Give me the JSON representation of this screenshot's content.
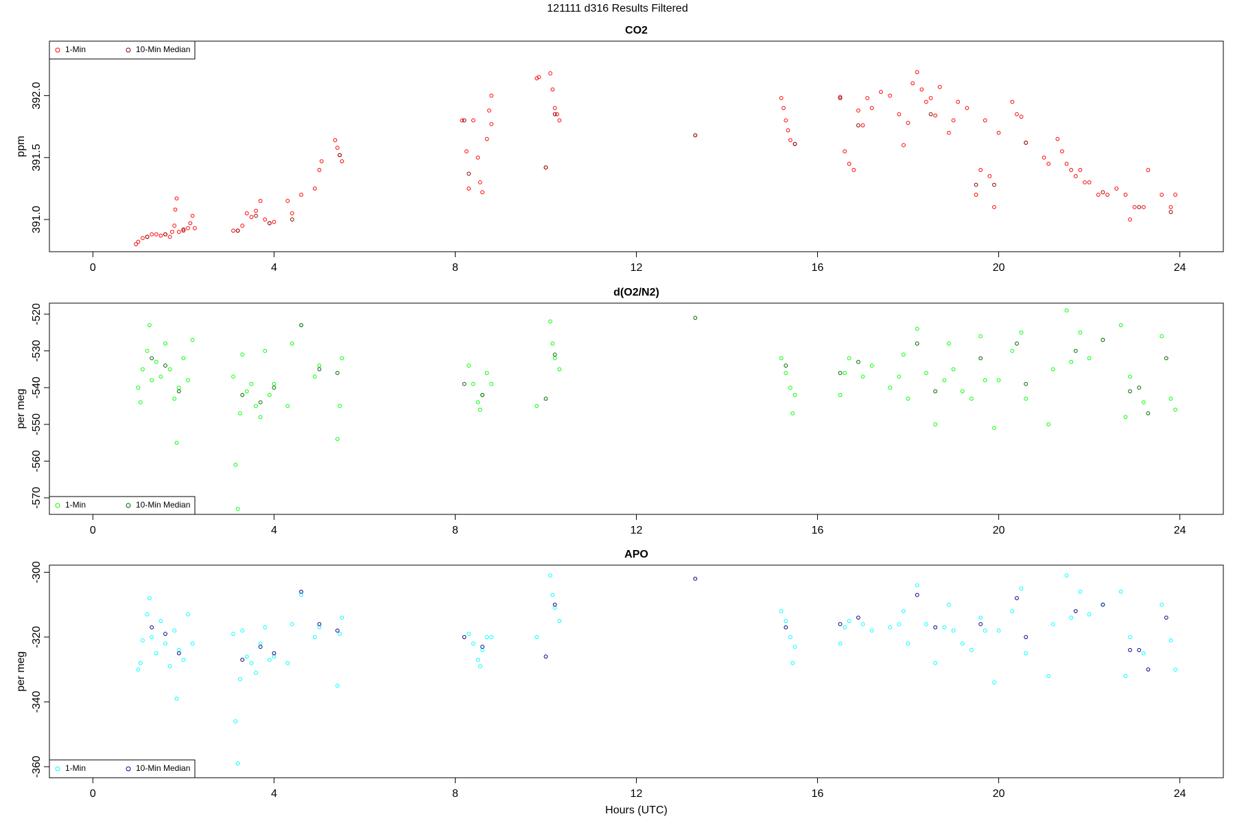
{
  "title": "121111   d316   Results Filtered",
  "chart_data": [
    {
      "type": "scatter",
      "title": "CO2",
      "ylabel": "ppm",
      "legend": "topleft",
      "xlim": [
        -0.96,
        24.96
      ],
      "xticks": [
        0,
        4,
        8,
        12,
        16,
        20,
        24
      ],
      "ylim": [
        390.74,
        392.44
      ],
      "yticks": [
        {
          "value": 391,
          "label": "391.0"
        },
        391.5,
        {
          "value": 392,
          "label": "392.0"
        }
      ],
      "series": [
        {
          "name": "1-Min",
          "color": "#ff0000",
          "x": [
            0.95,
            1.0,
            1.1,
            1.2,
            1.3,
            1.4,
            1.5,
            1.6,
            1.7,
            1.75,
            1.8,
            1.82,
            1.85,
            1.9,
            2.0,
            2.1,
            2.15,
            2.2,
            2.25,
            3.1,
            3.2,
            3.3,
            3.4,
            3.5,
            3.6,
            3.7,
            3.8,
            3.9,
            4.0,
            4.3,
            4.4,
            4.6,
            4.9,
            5.0,
            5.05,
            5.35,
            5.4,
            5.45,
            5.5,
            8.15,
            8.25,
            8.3,
            8.4,
            8.5,
            8.55,
            8.6,
            8.7,
            8.75,
            8.8,
            8.8,
            9.8,
            9.85,
            10.0,
            10.1,
            10.15,
            10.2,
            10.25,
            10.3,
            13.3,
            15.2,
            15.25,
            15.3,
            15.35,
            15.4,
            15.5,
            16.5,
            16.6,
            16.7,
            16.8,
            16.9,
            17.0,
            17.1,
            17.2,
            17.4,
            17.6,
            17.8,
            17.9,
            18.0,
            18.1,
            18.2,
            18.3,
            18.4,
            18.5,
            18.6,
            18.7,
            18.9,
            19.0,
            19.1,
            19.3,
            19.5,
            19.6,
            19.7,
            19.8,
            19.9,
            20.0,
            20.3,
            20.4,
            20.5,
            20.6,
            21.0,
            21.1,
            21.3,
            21.4,
            21.5,
            21.6,
            21.7,
            21.8,
            21.9,
            22.0,
            22.2,
            22.4,
            22.6,
            22.8,
            22.9,
            23.0,
            23.2,
            23.3,
            23.6,
            23.8,
            23.9
          ],
          "values": [
            390.8,
            390.82,
            390.85,
            390.86,
            390.88,
            390.88,
            390.87,
            390.88,
            390.86,
            390.9,
            390.95,
            391.08,
            391.17,
            390.9,
            390.91,
            390.93,
            390.97,
            391.03,
            390.93,
            390.91,
            390.91,
            390.95,
            391.05,
            391.02,
            391.07,
            391.15,
            391.0,
            390.97,
            390.98,
            391.15,
            391.05,
            391.2,
            391.25,
            391.4,
            391.47,
            391.64,
            391.58,
            391.52,
            391.47,
            391.8,
            391.55,
            391.25,
            391.8,
            391.5,
            391.3,
            391.22,
            391.65,
            391.88,
            392.0,
            391.77,
            392.14,
            392.15,
            391.42,
            392.18,
            392.05,
            391.9,
            391.85,
            391.8,
            391.68,
            391.98,
            391.9,
            391.8,
            391.72,
            391.64,
            391.61,
            391.99,
            391.55,
            391.45,
            391.4,
            391.88,
            391.76,
            391.98,
            391.9,
            392.03,
            392.0,
            391.85,
            391.6,
            391.78,
            392.1,
            392.19,
            392.05,
            391.95,
            391.98,
            391.84,
            392.07,
            391.7,
            391.8,
            391.95,
            391.9,
            391.2,
            391.4,
            391.8,
            391.35,
            391.1,
            391.7,
            391.95,
            391.85,
            391.83,
            391.62,
            391.5,
            391.45,
            391.65,
            391.55,
            391.45,
            391.4,
            391.35,
            391.4,
            391.3,
            391.3,
            391.2,
            391.2,
            391.25,
            391.2,
            391.0,
            391.1,
            391.1,
            391.4,
            391.2,
            391.1,
            391.2
          ]
        },
        {
          "name": "10-Min Median",
          "color": "#8b0000",
          "x": [
            1.2,
            1.6,
            2.0,
            3.2,
            3.6,
            3.9,
            4.4,
            5.45,
            8.2,
            8.3,
            10.0,
            10.2,
            13.3,
            15.5,
            16.5,
            16.9,
            18.5,
            19.5,
            19.9,
            20.6,
            22.3,
            23.1,
            23.8
          ],
          "values": [
            390.86,
            390.88,
            390.92,
            390.91,
            391.03,
            390.97,
            391.0,
            391.52,
            391.8,
            391.37,
            391.42,
            391.85,
            391.68,
            391.61,
            391.98,
            391.76,
            391.85,
            391.28,
            391.28,
            391.62,
            391.22,
            391.1,
            391.06
          ]
        }
      ]
    },
    {
      "type": "scatter",
      "title": "d(O2/N2)",
      "ylabel": "per meg",
      "legend": "bottomleft",
      "xlim": [
        -0.96,
        24.96
      ],
      "xticks": [
        0,
        4,
        8,
        12,
        16,
        20,
        24
      ],
      "ylim": [
        -574.5,
        -517.0
      ],
      "yticks": [
        -570,
        -560,
        -550,
        -540,
        -530,
        -520
      ],
      "series": [
        {
          "name": "1-Min",
          "color": "#00ff00",
          "x": [
            1.0,
            1.05,
            1.1,
            1.2,
            1.25,
            1.3,
            1.4,
            1.5,
            1.6,
            1.7,
            1.8,
            1.85,
            1.9,
            2.0,
            2.1,
            2.2,
            3.1,
            3.15,
            3.2,
            3.25,
            3.3,
            3.4,
            3.5,
            3.6,
            3.7,
            3.8,
            3.9,
            4.0,
            4.3,
            4.4,
            4.6,
            4.9,
            5.0,
            5.4,
            5.45,
            5.5,
            8.3,
            8.4,
            8.5,
            8.55,
            8.6,
            8.7,
            8.8,
            9.8,
            10.1,
            10.15,
            10.2,
            10.3,
            15.2,
            15.3,
            15.4,
            15.45,
            15.5,
            16.5,
            16.6,
            16.7,
            17.0,
            17.2,
            17.6,
            17.8,
            17.9,
            18.0,
            18.2,
            18.4,
            18.6,
            18.8,
            18.9,
            19.0,
            19.2,
            19.4,
            19.6,
            19.7,
            19.9,
            20.0,
            20.3,
            20.5,
            20.6,
            21.1,
            21.2,
            21.5,
            21.6,
            21.8,
            22.0,
            22.3,
            22.7,
            22.8,
            22.9,
            23.2,
            23.6,
            23.8,
            23.9
          ],
          "values": [
            -540,
            -544,
            -535,
            -530,
            -523,
            -538,
            -533,
            -537,
            -528,
            -535,
            -543,
            -555,
            -540,
            -532,
            -538,
            -527,
            -537,
            -561,
            -573,
            -547,
            -531,
            -541,
            -539,
            -545,
            -548,
            -530,
            -542,
            -539,
            -545,
            -528,
            -523,
            -537,
            -534,
            -554,
            -545,
            -532,
            -534,
            -539,
            -544,
            -546,
            -542,
            -536,
            -539,
            -545,
            -522,
            -528,
            -532,
            -535,
            -532,
            -536,
            -540,
            -547,
            -542,
            -542,
            -536,
            -532,
            -537,
            -534,
            -540,
            -537,
            -531,
            -543,
            -524,
            -536,
            -550,
            -538,
            -528,
            -535,
            -541,
            -543,
            -526,
            -538,
            -551,
            -538,
            -530,
            -525,
            -543,
            -550,
            -535,
            -519,
            -533,
            -525,
            -532,
            -527,
            -523,
            -548,
            -537,
            -544,
            -526,
            -543,
            -546
          ]
        },
        {
          "name": "10-Min Median",
          "color": "#006400",
          "x": [
            1.3,
            1.6,
            1.9,
            3.3,
            3.7,
            4.0,
            4.6,
            5.0,
            5.4,
            8.2,
            8.6,
            10.0,
            10.2,
            13.3,
            15.3,
            16.5,
            16.9,
            18.2,
            18.6,
            19.6,
            20.4,
            20.6,
            21.7,
            22.3,
            22.9,
            23.1,
            23.3,
            23.7
          ],
          "values": [
            -532,
            -534,
            -541,
            -542,
            -544,
            -540,
            -523,
            -535,
            -536,
            -539,
            -542,
            -543,
            -531,
            -521,
            -534,
            -536,
            -533,
            -528,
            -541,
            -532,
            -528,
            -539,
            -530,
            -527,
            -541,
            -540,
            -547,
            -532
          ]
        }
      ]
    },
    {
      "type": "scatter",
      "title": "APO",
      "ylabel": "per meg",
      "xlabel": "Hours (UTC)",
      "legend": "bottomleft",
      "xlim": [
        -0.96,
        24.96
      ],
      "xticks": [
        0,
        4,
        8,
        12,
        16,
        20,
        24
      ],
      "ylim": [
        -363.4,
        -297.8
      ],
      "yticks": [
        -360,
        -340,
        -320,
        -300
      ],
      "series": [
        {
          "name": "1-Min",
          "color": "#00ffff",
          "x": [
            1.0,
            1.05,
            1.1,
            1.2,
            1.25,
            1.3,
            1.4,
            1.5,
            1.6,
            1.7,
            1.8,
            1.85,
            1.9,
            2.0,
            2.1,
            2.2,
            3.1,
            3.15,
            3.2,
            3.25,
            3.3,
            3.4,
            3.5,
            3.6,
            3.7,
            3.8,
            3.9,
            4.0,
            4.3,
            4.4,
            4.6,
            4.9,
            5.0,
            5.4,
            5.45,
            5.5,
            8.3,
            8.4,
            8.5,
            8.55,
            8.6,
            8.7,
            8.8,
            9.8,
            10.1,
            10.15,
            10.2,
            10.3,
            15.2,
            15.3,
            15.4,
            15.45,
            15.5,
            16.5,
            16.6,
            16.7,
            17.0,
            17.2,
            17.6,
            17.8,
            17.9,
            18.0,
            18.2,
            18.4,
            18.6,
            18.8,
            18.9,
            19.0,
            19.2,
            19.4,
            19.6,
            19.7,
            19.9,
            20.0,
            20.3,
            20.5,
            20.6,
            21.1,
            21.2,
            21.5,
            21.6,
            21.8,
            22.0,
            22.3,
            22.7,
            22.8,
            22.9,
            23.2,
            23.6,
            23.8,
            23.9
          ],
          "values": [
            -330,
            -328,
            -321,
            -313,
            -308,
            -320,
            -325,
            -315,
            -322,
            -329,
            -318,
            -339,
            -324,
            -327,
            -313,
            -322,
            -319,
            -346,
            -359,
            -333,
            -318,
            -326,
            -328,
            -331,
            -322,
            -317,
            -327,
            -326,
            -328,
            -316,
            -307,
            -320,
            -317,
            -335,
            -319,
            -314,
            -319,
            -322,
            -327,
            -329,
            -324,
            -320,
            -320,
            -320,
            -301,
            -307,
            -311,
            -315,
            -312,
            -315,
            -320,
            -328,
            -323,
            -322,
            -317,
            -315,
            -316,
            -318,
            -317,
            -316,
            -312,
            -322,
            -304,
            -316,
            -328,
            -317,
            -310,
            -318,
            -322,
            -324,
            -314,
            -318,
            -334,
            -318,
            -312,
            -305,
            -325,
            -332,
            -316,
            -301,
            -314,
            -306,
            -313,
            -310,
            -306,
            -332,
            -320,
            -325,
            -310,
            -321,
            -330
          ]
        },
        {
          "name": "10-Min Median",
          "color": "#000080",
          "x": [
            1.3,
            1.6,
            1.9,
            3.3,
            3.7,
            4.0,
            4.6,
            5.0,
            5.4,
            8.2,
            8.6,
            10.0,
            10.2,
            13.3,
            15.3,
            16.5,
            16.9,
            18.2,
            18.6,
            19.6,
            20.4,
            20.6,
            21.7,
            22.3,
            22.9,
            23.1,
            23.3,
            23.7
          ],
          "values": [
            -317,
            -319,
            -325,
            -327,
            -323,
            -325,
            -306,
            -316,
            -318,
            -320,
            -323,
            -326,
            -310,
            -302,
            -317,
            -316,
            -314,
            -307,
            -317,
            -316,
            -308,
            -320,
            -312,
            -310,
            -324,
            -324,
            -330,
            -314
          ]
        }
      ]
    }
  ]
}
